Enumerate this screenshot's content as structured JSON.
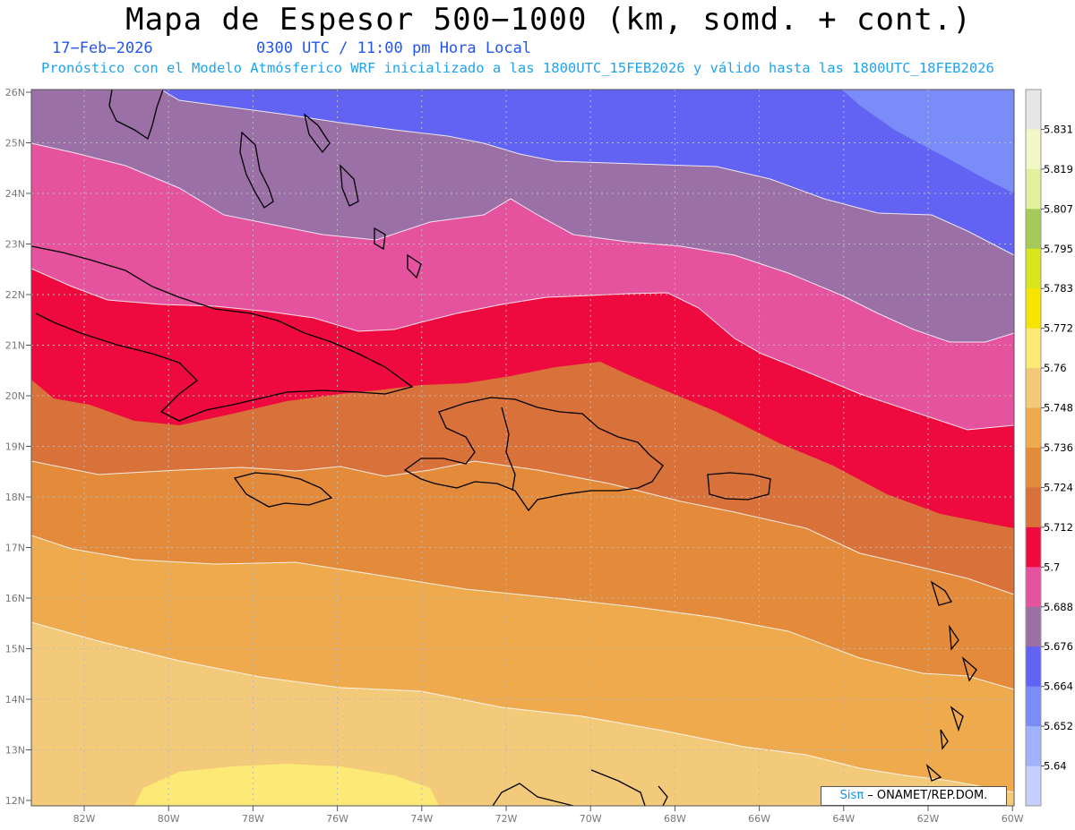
{
  "header": {
    "title": "Mapa de Espesor 500−1000 (km, somd. + cont.)",
    "date": "17−Feb−2026",
    "time": "0300 UTC / 11:00 pm Hora Local",
    "subtitle": "Pronóstico con el Modelo Atmósferico WRF inicializado a las 1800UTC_15FEB2026 y válido hasta las  1800UTC_18FEB2026"
  },
  "axes": {
    "lat_labels": [
      "26N",
      "25N",
      "24N",
      "23N",
      "22N",
      "21N",
      "20N",
      "19N",
      "18N",
      "17N",
      "16N",
      "15N",
      "14N",
      "13N",
      "12N"
    ],
    "lon_labels": [
      "82W",
      "80W",
      "78W",
      "76W",
      "74W",
      "72W",
      "70W",
      "68W",
      "66W",
      "64W",
      "62W",
      "60W"
    ]
  },
  "colorbar": {
    "levels": [
      "5.831",
      "5.819",
      "5.807",
      "5.795",
      "5.783",
      "5.772",
      "5.76",
      "5.748",
      "5.736",
      "5.724",
      "5.712",
      "5.7",
      "5.688",
      "5.676",
      "5.664",
      "5.652",
      "5.64"
    ],
    "colors": [
      "#e6e6e6",
      "#f3f6c6",
      "#e1f19e",
      "#a5c95a",
      "#d9e61c",
      "#f7e500",
      "#fde976",
      "#f3c97a",
      "#eeaa4d",
      "#e38b3a",
      "#d8723a",
      "#ee093e",
      "#e5539f",
      "#9a70a7",
      "#6262f3",
      "#7a8cf7",
      "#a0b2fb",
      "#c6cffd"
    ]
  },
  "legend": {
    "sis": "Sis",
    "pi": "π",
    "org": "– ONAMET/REP.DOM."
  }
}
